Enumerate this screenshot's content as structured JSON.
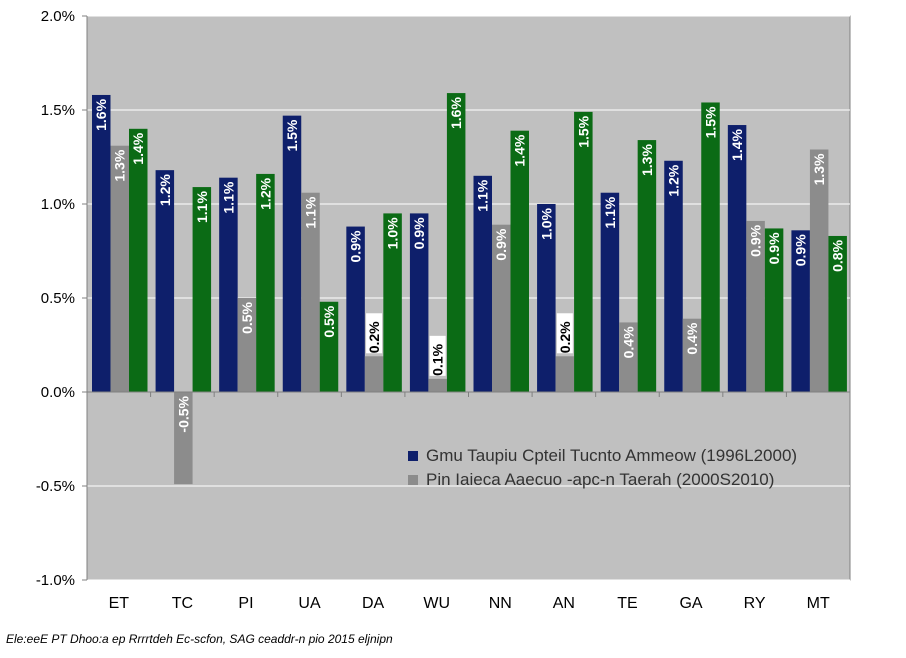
{
  "chart_data": {
    "type": "bar",
    "categories": [
      "ET",
      "TC",
      "PI",
      "UA",
      "DA",
      "WU",
      "NN",
      "AN",
      "TE",
      "GA",
      "RY",
      "MT"
    ],
    "series": [
      {
        "name": "Gmu Taupiu Cpteil Tucnto Ammeow (1996L2000)",
        "color": "#0e1f6b",
        "values": [
          1.58,
          1.18,
          1.14,
          1.47,
          0.88,
          0.95,
          1.15,
          1.0,
          1.06,
          1.23,
          1.42,
          0.86
        ],
        "labels": [
          "1.6%",
          "1.2%",
          "1.1%",
          "1.5%",
          "0.9%",
          "0.9%",
          "1.1%",
          "1.0%",
          "1.1%",
          "1.2%",
          "1.4%",
          "0.9%"
        ]
      },
      {
        "name": "Pin Iaieca Aaecuo -apc-n Taerah (2000S2010)",
        "color": "#8c8c8c",
        "values": [
          1.31,
          -0.49,
          0.5,
          1.06,
          0.19,
          0.07,
          0.89,
          0.19,
          0.37,
          0.39,
          0.91,
          1.29
        ],
        "labels": [
          "1.3%",
          "-0.5%",
          "0.5%",
          "1.1%",
          "0.2%",
          "0.1%",
          "0.9%",
          "0.2%",
          "0.4%",
          "0.4%",
          "0.9%",
          "1.3%"
        ]
      },
      {
        "name": "",
        "color": "#0b6b15",
        "values": [
          1.4,
          1.09,
          1.16,
          0.48,
          0.95,
          1.59,
          1.39,
          1.49,
          1.34,
          1.54,
          0.87,
          0.83
        ],
        "labels": [
          "1.4%",
          "1.1%",
          "1.2%",
          "0.5%",
          "1.0%",
          "1.6%",
          "1.4%",
          "1.5%",
          "1.3%",
          "1.5%",
          "0.9%",
          "0.8%"
        ]
      }
    ],
    "ylim": [
      -1.0,
      2.0
    ],
    "yticks": [
      "-1.0%",
      "-0.5%",
      "0.0%",
      "0.5%",
      "1.0%",
      "1.5%",
      "2.0%"
    ],
    "ytick_values": [
      -1.0,
      -0.5,
      0.0,
      0.5,
      1.0,
      1.5,
      2.0
    ],
    "plot_background": "#c0c0c0",
    "grid": true,
    "legend": "bottom-right inside plot"
  },
  "source_note": "Ele:eeE PT Dhoo:a ep Rrrrtdeh Ec-scfon, SAG ceaddr-n pio 2015 eljnipn"
}
